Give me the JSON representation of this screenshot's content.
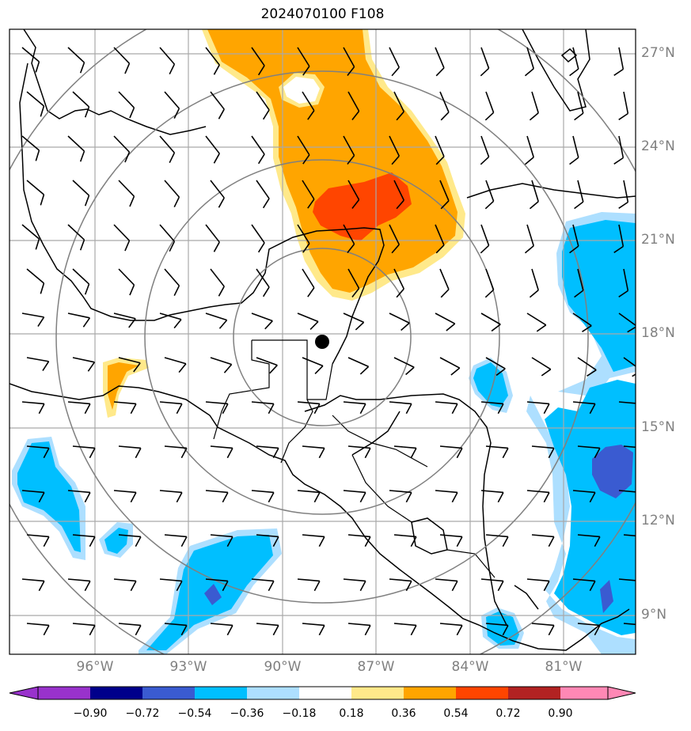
{
  "title": "2024070100 F108",
  "lat_labels": [
    "27°N",
    "24°N",
    "21°N",
    "18°N",
    "15°N",
    "12°N",
    "9°N"
  ],
  "lon_labels": [
    "96°W",
    "93°W",
    "90°W",
    "87°W",
    "84°W",
    "81°W"
  ],
  "colorbar": {
    "ticks": [
      "−0.90",
      "−0.72",
      "−0.54",
      "−0.36",
      "−0.18",
      "0.18",
      "0.36",
      "0.54",
      "0.72",
      "0.90"
    ],
    "colors": [
      "#9932CC",
      "#00008B",
      "#3A5BD1",
      "#00BFFF",
      "#ADDFFF",
      "#FFFFFF",
      "#FFE98A",
      "#FFA500",
      "#FF4500",
      "#B22222",
      "#FF88B5"
    ]
  },
  "map": {
    "extent": {
      "lon_min": -98.7,
      "lon_max": -78.8,
      "lat_min": 7.8,
      "lat_max": 27.7
    },
    "center_marker": {
      "lon": -88.1,
      "lat": 17.8
    },
    "range_rings_count": 4,
    "grid_color": "#A9A9A9",
    "ring_color": "#808080"
  }
}
